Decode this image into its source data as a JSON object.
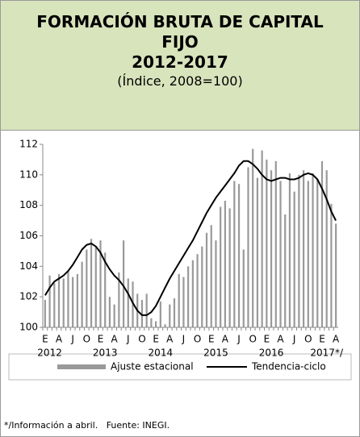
{
  "chart_data": {
    "type": "bar_line",
    "title": "FORMACIÓN BRUTA DE CAPITAL FIJO",
    "period": "2012-2017",
    "subtitle": "(Índice, 2008=100)",
    "categories": [
      "E",
      null,
      null,
      "A",
      null,
      null,
      "J",
      null,
      null,
      "O",
      null,
      null,
      "E",
      null,
      null,
      "A",
      null,
      null,
      "J",
      null,
      null,
      "O",
      null,
      null,
      "E",
      null,
      null,
      "A",
      null,
      null,
      "J",
      null,
      null,
      "O",
      null,
      null,
      "E",
      null,
      null,
      "A",
      null,
      null,
      "J",
      null,
      null,
      "O",
      null,
      null,
      "E",
      null,
      null,
      "A",
      null,
      null,
      "J",
      null,
      null,
      "O",
      null,
      null,
      "E",
      null,
      null,
      "A"
    ],
    "year_labels": [
      "2012",
      "2013",
      "2014",
      "2015",
      "2016",
      "2017*/"
    ],
    "series": [
      {
        "name": "Ajuste estacional",
        "color": "#999999",
        "values": [
          101.8,
          103.4,
          102.9,
          103.5,
          103.2,
          103.7,
          103.3,
          103.5,
          104.3,
          105.1,
          105.8,
          105.3,
          105.7,
          104.9,
          102.0,
          101.5,
          103.6,
          105.7,
          103.2,
          103.0,
          102.2,
          101.8,
          102.2,
          100.6,
          100.4,
          101.7,
          100.2,
          101.5,
          101.9,
          103.5,
          103.3,
          104.0,
          104.4,
          104.8,
          105.3,
          106.2,
          106.7,
          105.7,
          107.9,
          108.3,
          107.8,
          109.6,
          109.4,
          105.1,
          110.5,
          111.7,
          109.8,
          111.6,
          111.0,
          110.3,
          110.9,
          109.6,
          107.4,
          110.1,
          108.9,
          110.0,
          110.3,
          109.6,
          110.1,
          109.7,
          110.9,
          110.3,
          108.1,
          106.8
        ]
      },
      {
        "name": "Tendencia-ciclo",
        "color": "#000000",
        "values": [
          102.1,
          102.6,
          103.0,
          103.2,
          103.4,
          103.7,
          104.1,
          104.6,
          105.1,
          105.4,
          105.5,
          105.3,
          104.9,
          104.3,
          103.8,
          103.4,
          103.1,
          102.7,
          102.2,
          101.6,
          101.1,
          100.8,
          100.8,
          101.0,
          101.4,
          102.0,
          102.6,
          103.2,
          103.7,
          104.2,
          104.7,
          105.2,
          105.7,
          106.3,
          106.9,
          107.5,
          108.0,
          108.5,
          108.9,
          109.3,
          109.7,
          110.1,
          110.6,
          110.9,
          110.9,
          110.7,
          110.4,
          110.0,
          109.7,
          109.6,
          109.7,
          109.8,
          109.8,
          109.7,
          109.7,
          109.8,
          110.0,
          110.1,
          110.0,
          109.7,
          109.1,
          108.4,
          107.6,
          107.0
        ]
      }
    ],
    "ylim": [
      100,
      112
    ],
    "yticks": [
      100,
      102,
      104,
      106,
      108,
      110,
      112
    ],
    "footnote": "*/Información a abril.   Fuente: INEGI."
  }
}
